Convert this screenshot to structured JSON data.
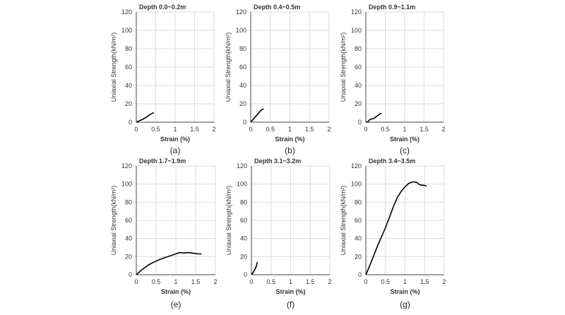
{
  "figure": {
    "panels": [
      {
        "tag": "(a)",
        "title": "Depth 0.0~0.2m"
      },
      {
        "tag": "(b)",
        "title": "Depth 0.4~0.5m"
      },
      {
        "tag": "(c)",
        "title": "Depth 0.9~1.1m"
      },
      {
        "tag": "(e)",
        "title": "Depth 1.7~1.9m"
      },
      {
        "tag": "(f)",
        "title": "Depth 3.1~3.2m"
      },
      {
        "tag": "(g)",
        "title": "Depth 3.4~3.5m"
      }
    ]
  },
  "chart_data": [
    {
      "type": "line",
      "title": "Depth 0.0~0.2m",
      "xlabel": "Strain (%)",
      "ylabel": "Uniaxial Strength(kN/m²)",
      "xlim": [
        0,
        2
      ],
      "ylim": [
        0,
        120
      ],
      "xticks": [
        0,
        0.5,
        1,
        1.5,
        2
      ],
      "xtick_labels": [
        "0",
        "0.5",
        "1",
        "1.5",
        "2"
      ],
      "yticks": [
        0,
        20,
        40,
        60,
        80,
        100,
        120
      ],
      "ytick_labels": [
        "0",
        "20",
        "40",
        "60",
        "80",
        "100",
        "120"
      ],
      "grid": true,
      "series": [
        {
          "x": [
            0,
            0.05,
            0.1,
            0.15,
            0.2,
            0.25,
            0.3,
            0.35,
            0.4,
            0.45
          ],
          "y": [
            0,
            1,
            2,
            2.8,
            4,
            5.2,
            6.8,
            8.2,
            9.4,
            10.5
          ]
        }
      ]
    },
    {
      "type": "line",
      "title": "Depth 0.4~0.5m",
      "xlabel": "Strain (%)",
      "ylabel": "Uniaxial Strength(kN/m²)",
      "xlim": [
        0,
        2
      ],
      "ylim": [
        0,
        120
      ],
      "xticks": [
        0,
        0.5,
        1,
        1.5,
        2
      ],
      "xtick_labels": [
        "0",
        "0.5",
        "1",
        "1.5",
        "2"
      ],
      "yticks": [
        0,
        20,
        40,
        60,
        80,
        100,
        120
      ],
      "ytick_labels": [
        "0",
        "20",
        "40",
        "60",
        "80",
        "100",
        "120"
      ],
      "grid": true,
      "series": [
        {
          "x": [
            0,
            0.05,
            0.1,
            0.15,
            0.2,
            0.25,
            0.3,
            0.33
          ],
          "y": [
            0,
            2.5,
            5,
            7.5,
            10,
            12.5,
            14,
            14.5
          ]
        }
      ]
    },
    {
      "type": "line",
      "title": "Depth 0.9~1.1m",
      "xlabel": "Strain (%)",
      "ylabel": "Uniaxial Strength(kN/m²)",
      "xlim": [
        0,
        2
      ],
      "ylim": [
        0,
        120
      ],
      "xticks": [
        0,
        0.5,
        1,
        1.5,
        2
      ],
      "xtick_labels": [
        "0",
        "0.5",
        "1",
        "1.5",
        "2"
      ],
      "yticks": [
        0,
        20,
        40,
        60,
        80,
        100,
        120
      ],
      "ytick_labels": [
        "0",
        "20",
        "40",
        "60",
        "80",
        "100",
        "120"
      ],
      "grid": true,
      "series": [
        {
          "x": [
            0,
            0.05,
            0.08,
            0.1,
            0.15,
            0.2,
            0.25,
            0.3,
            0.35,
            0.4
          ],
          "y": [
            0,
            0.5,
            1.5,
            3,
            3.5,
            4,
            5.5,
            7,
            8.5,
            10
          ]
        }
      ]
    },
    {
      "type": "line",
      "title": "Depth 1.7~1.9m",
      "xlabel": "Strain (%)",
      "ylabel": "Uniaxial Strength(kN/m²)",
      "xlim": [
        0,
        2
      ],
      "ylim": [
        0,
        120
      ],
      "xticks": [
        0,
        0.5,
        1,
        1.5,
        2
      ],
      "xtick_labels": [
        "0",
        "0.5",
        "1",
        "1.5",
        "2"
      ],
      "yticks": [
        0,
        20,
        40,
        60,
        80,
        100,
        120
      ],
      "ytick_labels": [
        "0",
        "20",
        "40",
        "60",
        "80",
        "100",
        "120"
      ],
      "grid": true,
      "series": [
        {
          "x": [
            0,
            0.1,
            0.2,
            0.3,
            0.4,
            0.5,
            0.6,
            0.7,
            0.8,
            0.9,
            1.0,
            1.1,
            1.2,
            1.3,
            1.4,
            1.5,
            1.6,
            1.65
          ],
          "y": [
            0,
            4,
            7.5,
            10.5,
            13,
            15,
            17,
            18.5,
            20,
            21.5,
            23,
            24.5,
            24,
            24.5,
            24,
            23.3,
            23,
            23
          ]
        }
      ]
    },
    {
      "type": "line",
      "title": "Depth 3.1~3.2m",
      "xlabel": "Strain (%)",
      "ylabel": "Uniaxial Strength(kN/m²)",
      "xlim": [
        0,
        2
      ],
      "ylim": [
        0,
        120
      ],
      "xticks": [
        0,
        0.5,
        1,
        1.5,
        2
      ],
      "xtick_labels": [
        "0",
        "0.5",
        "1",
        "1.5",
        "2"
      ],
      "yticks": [
        0,
        20,
        40,
        60,
        80,
        100,
        120
      ],
      "ytick_labels": [
        "0",
        "20",
        "40",
        "60",
        "80",
        "100",
        "120"
      ],
      "grid": true,
      "series": [
        {
          "x": [
            0,
            0.05,
            0.1,
            0.13,
            0.15
          ],
          "y": [
            0,
            3,
            7,
            10,
            14
          ]
        }
      ]
    },
    {
      "type": "line",
      "title": "Depth 3.4~3.5m",
      "xlabel": "Strain (%)",
      "ylabel": "Uniaxial Strength(kN/m²)",
      "xlim": [
        0,
        2
      ],
      "ylim": [
        0,
        120
      ],
      "xticks": [
        0,
        0.5,
        1,
        1.5,
        2
      ],
      "xtick_labels": [
        "0",
        "0.5",
        "1",
        "1.5",
        "2"
      ],
      "yticks": [
        0,
        20,
        40,
        60,
        80,
        100,
        120
      ],
      "ytick_labels": [
        "0",
        "20",
        "40",
        "60",
        "80",
        "100",
        "120"
      ],
      "grid": true,
      "series": [
        {
          "x": [
            0,
            0.1,
            0.2,
            0.3,
            0.4,
            0.5,
            0.6,
            0.7,
            0.8,
            0.9,
            1.0,
            1.1,
            1.2,
            1.3,
            1.35,
            1.4,
            1.5,
            1.55
          ],
          "y": [
            0,
            10,
            21,
            32,
            42,
            52,
            63,
            75,
            85,
            92,
            97,
            101,
            102.5,
            102,
            100,
            99,
            98.5,
            98
          ]
        }
      ]
    }
  ]
}
